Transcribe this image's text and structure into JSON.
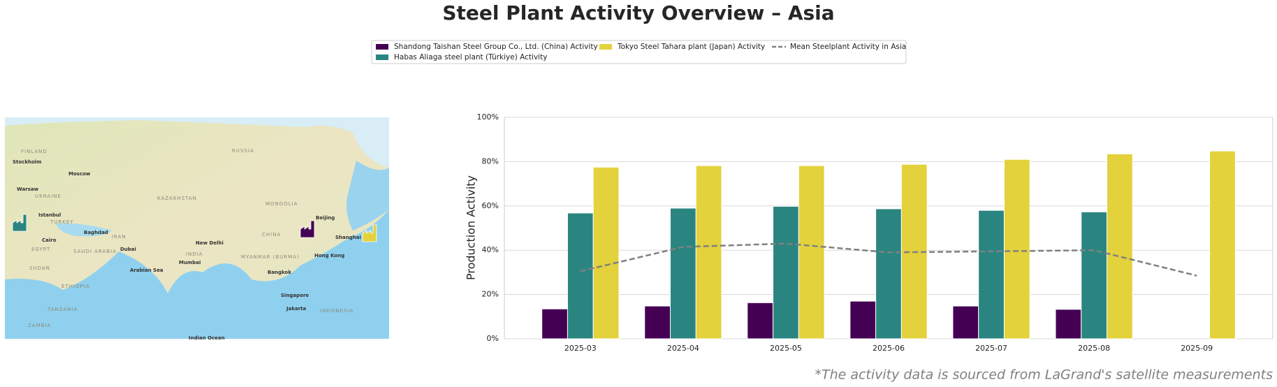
{
  "chart_data": {
    "type": "bar",
    "title": "Steel Plant Activity Overview – Asia",
    "ylabel": "Production Activity",
    "footnote": "*The activity data is sourced from LaGrand's satellite measurements",
    "categories": [
      "2025-03",
      "2025-04",
      "2025-05",
      "2025-06",
      "2025-07",
      "2025-08",
      "2025-09"
    ],
    "series": [
      {
        "name": "Shandong Taishan Steel Group Co., Ltd. (China) Activity",
        "color": "#440154",
        "values": [
          13.5,
          14.8,
          16.3,
          17.0,
          14.8,
          13.3,
          null
        ]
      },
      {
        "name": "Habas Aliaga steel plant (Türkiye) Activity",
        "color": "#2a8580",
        "values": [
          56.8,
          59.0,
          59.8,
          58.7,
          58.0,
          57.3,
          null
        ]
      },
      {
        "name": "Tokyo Steel Tahara plant (Japan) Activity",
        "color": "#e3d23c",
        "values": [
          77.5,
          78.2,
          78.2,
          78.8,
          81.0,
          83.5,
          84.8
        ]
      },
      {
        "name": "Mean Steelplant Activity in Asia",
        "type": "line",
        "color": "#808080",
        "values": [
          30.5,
          41.5,
          43.0,
          39.0,
          39.5,
          40.0,
          28.5
        ]
      }
    ],
    "ylim": [
      0,
      100
    ],
    "yticks": [
      {
        "value": 0,
        "label": "0%"
      },
      {
        "value": 20,
        "label": "20%"
      },
      {
        "value": 40,
        "label": "40%"
      },
      {
        "value": 60,
        "label": "60%"
      },
      {
        "value": 80,
        "label": "80%"
      },
      {
        "value": 100,
        "label": "100%"
      }
    ],
    "grid": true,
    "legend": "top"
  },
  "map": {
    "labels": [
      "FINLAND",
      "Stockholm",
      "RUSSIA",
      "Moscow",
      "Warsaw",
      "UKRAINE",
      "KAZAKHSTAN",
      "MONGOLIA",
      "Istanbul",
      "TURKEY",
      "Baghdad",
      "IRAN",
      "Beijing",
      "CHINA",
      "Shanghai",
      "Cairo",
      "EGYPT",
      "SAUDI ARABIA",
      "Dubai",
      "New Delhi",
      "INDIA",
      "Mumbai",
      "MYANMAR (BURMA)",
      "Hong Kong",
      "Bangkok",
      "SUDAN",
      "ETHIOPIA",
      "Arabian Sea",
      "Singapore",
      "Jakarta",
      "INDONESIA",
      "TANZANIA",
      "ZAMBIA",
      "Indian Ocean"
    ]
  }
}
